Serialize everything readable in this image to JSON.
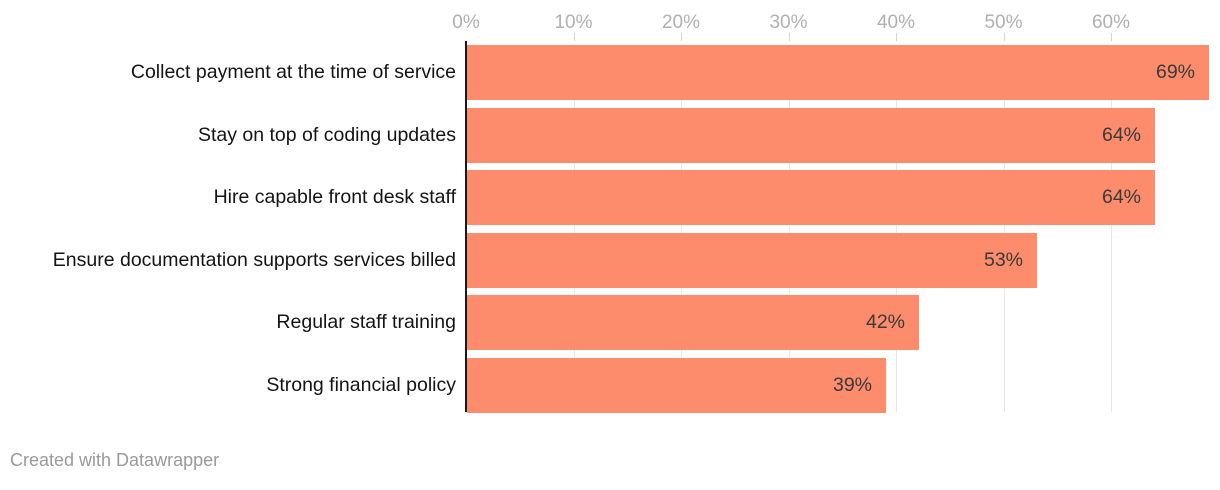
{
  "chart_data": {
    "type": "bar",
    "orientation": "horizontal",
    "title": "",
    "categories": [
      "Collect payment at the time of service",
      "Stay on top of coding updates",
      "Hire capable front desk staff",
      "Ensure documentation supports services billed",
      "Regular staff training",
      "Strong financial policy"
    ],
    "values": [
      69,
      64,
      64,
      53,
      42,
      39
    ],
    "value_labels": [
      "69%",
      "64%",
      "64%",
      "53%",
      "42%",
      "39%"
    ],
    "x_ticks": [
      {
        "value": 0,
        "label": "0%"
      },
      {
        "value": 10,
        "label": "10%"
      },
      {
        "value": 20,
        "label": "20%"
      },
      {
        "value": 30,
        "label": "30%"
      },
      {
        "value": 40,
        "label": "40%"
      },
      {
        "value": 50,
        "label": "50%"
      },
      {
        "value": 60,
        "label": "60%"
      }
    ],
    "xlim": [
      0,
      70
    ],
    "grid": "vertical",
    "legend": "none",
    "colors": {
      "bar": "#fc8c6c",
      "value_label": "#3a3a3a",
      "category_label": "#141414",
      "tick_label": "#b0b0b0",
      "gridline": "#e7e7e7",
      "axis_line": "#1a1a1a"
    }
  },
  "footer": {
    "attribution": "Created with Datawrapper"
  }
}
